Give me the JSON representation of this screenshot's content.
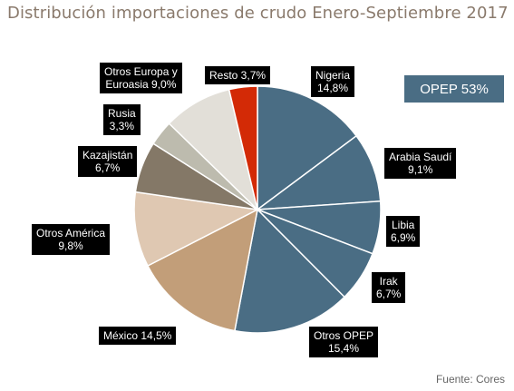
{
  "title": "Distribución importaciones de crudo Enero-Septiembre 2017",
  "opep_box": "OPEP 53%",
  "source": "Fuente: Cores",
  "chart_data": {
    "type": "pie",
    "title": "Distribución importaciones de crudo Enero-Septiembre 2017",
    "slices": [
      {
        "name": "Nigeria",
        "value": 14.8,
        "label": "Nigeria\n14,8%",
        "color": "#4a6d84"
      },
      {
        "name": "Arabia Saudí",
        "value": 9.1,
        "label": "Arabia Saudí\n9,1%",
        "color": "#4a6d84"
      },
      {
        "name": "Libia",
        "value": 6.9,
        "label": "Libia\n6,9%",
        "color": "#4a6d84"
      },
      {
        "name": "Irak",
        "value": 6.7,
        "label": "Irak\n6,7%",
        "color": "#4a6d84"
      },
      {
        "name": "Otros OPEP",
        "value": 15.4,
        "label": "Otros OPEP\n15,4%",
        "color": "#4a6d84"
      },
      {
        "name": "México",
        "value": 14.5,
        "label": "México 14,5%",
        "color": "#c29e79"
      },
      {
        "name": "Otros América",
        "value": 9.8,
        "label": "Otros América\n9,8%",
        "color": "#dfc8b2"
      },
      {
        "name": "Kazajistán",
        "value": 6.7,
        "label": "Kazajistán\n6,7%",
        "color": "#847867"
      },
      {
        "name": "Rusia",
        "value": 3.3,
        "label": "Rusia\n3,3%",
        "color": "#bdbbae"
      },
      {
        "name": "Otros Europa y Euroasia",
        "value": 9.0,
        "label": "Otros Europa y\nEuroasia 9,0%",
        "color": "#e2dfd8"
      },
      {
        "name": "Resto",
        "value": 3.7,
        "label": "Resto 3,7%",
        "color": "#d32a06"
      }
    ]
  }
}
